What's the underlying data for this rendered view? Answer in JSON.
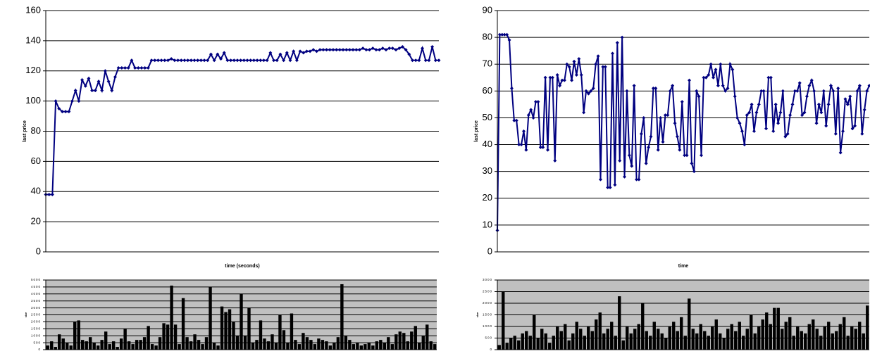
{
  "chart_data": [
    {
      "type": "line",
      "y_label": "last price",
      "x_label": "time (seconds)",
      "color": "#000080",
      "grid": true,
      "plot_background": "#ffffff",
      "ylim": [
        0,
        160
      ],
      "yticks": [
        0,
        20,
        40,
        60,
        80,
        100,
        120,
        140,
        160
      ],
      "values": [
        38,
        38,
        38,
        100,
        95,
        93,
        93,
        93,
        100,
        107,
        100,
        114,
        110,
        115,
        107,
        107,
        113,
        107,
        120,
        113,
        107,
        116,
        122,
        122,
        122,
        122,
        127,
        122,
        122,
        122,
        122,
        122,
        127,
        127,
        127,
        127,
        127,
        127,
        128,
        127,
        127,
        127,
        127,
        127,
        127,
        127,
        127,
        127,
        127,
        127,
        131,
        127,
        131,
        128,
        132,
        127,
        127,
        127,
        127,
        127,
        127,
        127,
        127,
        127,
        127,
        127,
        127,
        127,
        132,
        127,
        127,
        131,
        127,
        132,
        127,
        133,
        127,
        133,
        132,
        133,
        133,
        134,
        133,
        134,
        134,
        134,
        134,
        134,
        134,
        134,
        134,
        134,
        134,
        134,
        134,
        134,
        135,
        134,
        134,
        135,
        134,
        134,
        135,
        134,
        135,
        135,
        134,
        135,
        136,
        134,
        131,
        127,
        127,
        127,
        135,
        127,
        127,
        136,
        127,
        127
      ]
    },
    {
      "type": "line",
      "y_label": "last price",
      "x_label": "time",
      "color": "#000080",
      "grid": true,
      "plot_background": "#ffffff",
      "ylim": [
        0,
        90
      ],
      "yticks": [
        0,
        10,
        20,
        30,
        40,
        50,
        60,
        70,
        80,
        90
      ],
      "values": [
        8,
        81,
        81,
        81,
        81,
        79,
        61,
        49,
        49,
        40,
        40,
        45,
        38,
        51,
        53,
        50,
        56,
        56,
        39,
        39,
        65,
        38,
        65,
        65,
        34,
        66,
        62,
        64,
        64,
        70,
        69,
        64,
        71,
        66,
        72,
        66,
        52,
        60,
        59,
        60,
        61,
        70,
        73,
        27,
        69,
        69,
        24,
        24,
        74,
        25,
        78,
        34,
        80,
        28,
        60,
        36,
        32,
        62,
        27,
        27,
        44,
        50,
        33,
        39,
        43,
        61,
        61,
        38,
        50,
        41,
        51,
        51,
        60,
        62,
        48,
        43,
        38,
        56,
        36,
        36,
        64,
        33,
        30,
        60,
        58,
        36,
        65,
        65,
        66,
        70,
        65,
        68,
        62,
        70,
        62,
        60,
        61,
        70,
        68,
        58,
        50,
        48,
        45,
        40,
        51,
        52,
        55,
        45,
        52,
        55,
        60,
        60,
        46,
        65,
        65,
        45,
        55,
        48,
        52,
        60,
        43,
        44,
        51,
        55,
        60,
        60,
        63,
        51,
        52,
        58,
        62,
        64,
        60,
        48,
        55,
        52,
        60,
        47,
        55,
        62,
        60,
        44,
        61,
        37,
        45,
        57,
        55,
        58,
        46,
        47,
        60,
        62,
        44,
        53,
        60,
        62
      ]
    },
    {
      "type": "bar",
      "y_label": "size",
      "color": "#000000",
      "grid": true,
      "plot_background": "#c0c0c0",
      "ylim": [
        0,
        5000
      ],
      "yticks": [
        0,
        500,
        1000,
        1500,
        2000,
        2500,
        3000,
        3500,
        4000,
        4500,
        5000
      ],
      "values": [
        300,
        600,
        200,
        1100,
        800,
        500,
        300,
        2000,
        2100,
        700,
        600,
        900,
        500,
        300,
        700,
        1300,
        400,
        600,
        200,
        800,
        1500,
        600,
        400,
        700,
        700,
        900,
        1700,
        400,
        300,
        900,
        1900,
        1800,
        4600,
        1800,
        400,
        3700,
        900,
        600,
        1100,
        700,
        400,
        900,
        4500,
        500,
        300,
        3100,
        2700,
        2900,
        2000,
        1000,
        4000,
        1000,
        3000,
        500,
        700,
        2100,
        800,
        600,
        1100,
        500,
        2500,
        1400,
        500,
        2600,
        700,
        400,
        1200,
        900,
        700,
        400,
        800,
        700,
        600,
        300,
        500,
        900,
        4700,
        1000,
        700,
        400,
        500,
        300,
        400,
        500,
        300,
        600,
        700,
        500,
        900,
        400,
        1100,
        1300,
        1200,
        600,
        1300,
        1700,
        500,
        1000,
        1800,
        600,
        400
      ]
    },
    {
      "type": "bar",
      "y_label": "size",
      "color": "#000000",
      "grid": true,
      "plot_background": "#c0c0c0",
      "ylim": [
        0,
        3000
      ],
      "yticks": [
        0,
        500,
        1000,
        1500,
        2000,
        2500,
        3000
      ],
      "values": [
        200,
        2500,
        300,
        500,
        600,
        400,
        700,
        800,
        600,
        1500,
        500,
        900,
        700,
        300,
        600,
        1000,
        800,
        1100,
        400,
        700,
        1200,
        900,
        600,
        1000,
        800,
        1300,
        1600,
        700,
        900,
        1200,
        600,
        2300,
        400,
        1000,
        700,
        900,
        1100,
        2000,
        800,
        600,
        1200,
        900,
        700,
        500,
        1000,
        1200,
        800,
        1400,
        600,
        2200,
        900,
        700,
        1100,
        800,
        600,
        1000,
        1300,
        700,
        500,
        900,
        1100,
        800,
        1200,
        600,
        900,
        1500,
        700,
        1000,
        1300,
        1600,
        1100,
        1800,
        1800,
        900,
        1200,
        1400,
        600,
        1000,
        800,
        700,
        1100,
        1300,
        900,
        600,
        1000,
        1200,
        700,
        800,
        1100,
        1400,
        600,
        1000,
        900,
        1200,
        700,
        1900
      ]
    }
  ]
}
